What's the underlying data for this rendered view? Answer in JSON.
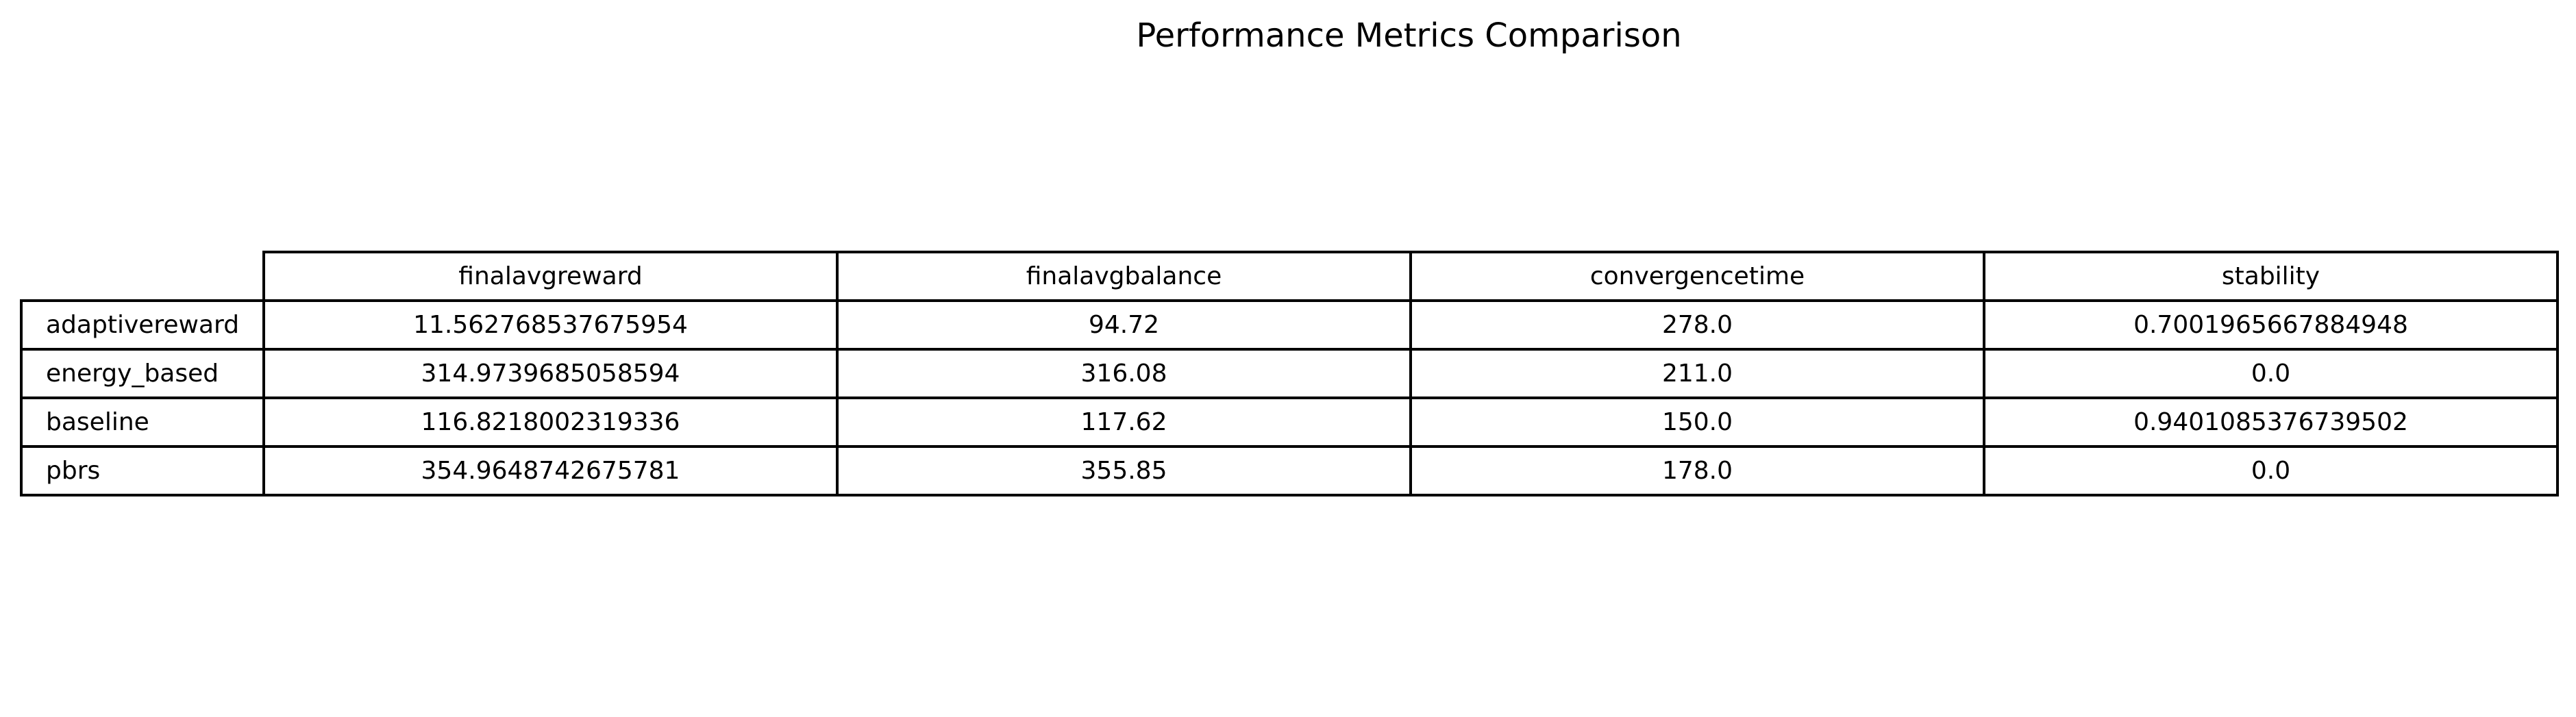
{
  "chart_data": {
    "type": "table",
    "title": "Performance Metrics Comparison",
    "columns": [
      "finalavgreward",
      "finalavgbalance",
      "convergencetime",
      "stability"
    ],
    "rows": [
      {
        "label": "adaptivereward",
        "values": [
          "11.562768537675954",
          "94.72",
          "278.0",
          "0.7001965667884948"
        ]
      },
      {
        "label": "energy_based",
        "values": [
          "314.9739685058594",
          "316.08",
          "211.0",
          "0.0"
        ]
      },
      {
        "label": "baseline",
        "values": [
          "116.8218002319336",
          "117.62",
          "150.0",
          "0.9401085376739502"
        ]
      },
      {
        "label": "pbrs",
        "values": [
          "354.9648742675781",
          "355.85",
          "178.0",
          "0.0"
        ]
      }
    ]
  }
}
